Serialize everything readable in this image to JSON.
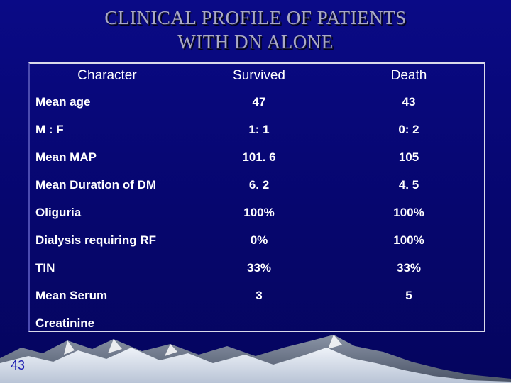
{
  "slide": {
    "title_line1": "CLINICAL  PROFILE OF PATIENTS",
    "title_line2": "WITH DN ALONE",
    "page_number": "43"
  },
  "table": {
    "headers": [
      "Character",
      "Survived",
      "Death"
    ],
    "rows": [
      [
        "Mean age",
        "47",
        "43"
      ],
      [
        "M : F",
        "1: 1",
        "0: 2"
      ],
      [
        "Mean MAP",
        "101. 6",
        "105"
      ],
      [
        "Mean Duration of DM",
        "6. 2",
        "4. 5"
      ],
      [
        "Oliguria",
        "100%",
        "100%"
      ],
      [
        "Dialysis requiring RF",
        "0%",
        "100%"
      ],
      [
        "TIN",
        "33%",
        "33%"
      ],
      [
        "Mean Serum",
        "3",
        "5"
      ],
      [
        "Creatinine",
        "",
        ""
      ]
    ]
  },
  "colors": {
    "background": "#08087a",
    "title": "#a9a9c6",
    "text": "#ffffff",
    "page_number": "#1a1ab0"
  }
}
